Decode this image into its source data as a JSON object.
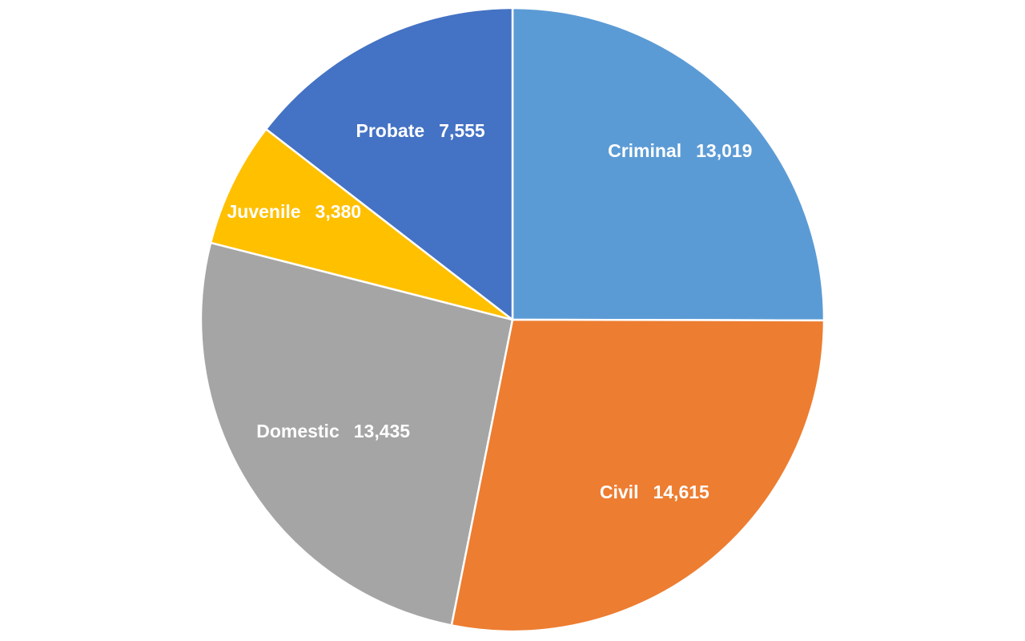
{
  "chart_data": {
    "type": "pie",
    "title": "",
    "start_angle_deg": 0,
    "direction": "clockwise",
    "legend": "none",
    "slices": [
      {
        "category": "Criminal",
        "value": 13019,
        "value_label": "13,019",
        "color": "#5B9BD5"
      },
      {
        "category": "Civil",
        "value": 14615,
        "value_label": "14,615",
        "color": "#ED7D31"
      },
      {
        "category": "Domestic",
        "value": 13435,
        "value_label": "13,435",
        "color": "#A5A5A5"
      },
      {
        "category": "Juvenile",
        "value": 3380,
        "value_label": "3,380",
        "color": "#FFC000"
      },
      {
        "category": "Probate",
        "value": 7555,
        "value_label": "7,555",
        "color": "#4472C4"
      }
    ]
  }
}
